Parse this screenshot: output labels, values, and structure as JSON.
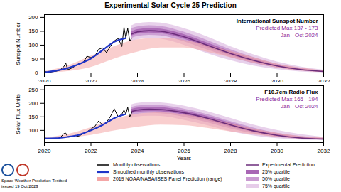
{
  "title": "Experimental Solar Cycle 25 Prediction",
  "footer": [
    "Space Weather Prediction Testbed",
    "issued 19 Oct 2023"
  ],
  "chart_data": [
    {
      "type": "line",
      "ylabel": "Sunspot Number",
      "xlim": [
        2020,
        2032
      ],
      "xticks": [
        2020,
        2022,
        2024,
        2026,
        2028,
        2030,
        2032
      ],
      "ylim": [
        0,
        210
      ],
      "yticks": [
        0,
        50,
        100,
        150,
        200
      ],
      "grid": false,
      "annotations": [
        {
          "text": "International Sunspot Number",
          "color": "#000000"
        },
        {
          "text": "Predicted Max 137 - 173",
          "color": "#8a2b9e"
        },
        {
          "text": "Jan - Oct 2024",
          "color": "#8a2b9e"
        }
      ],
      "series": [
        {
          "name": "Monthly observations",
          "type": "line",
          "color": "#000000",
          "x": [
            2020.0,
            2020.17,
            2020.33,
            2020.5,
            2020.67,
            2020.83,
            2020.92,
            2021.0,
            2021.17,
            2021.33,
            2021.5,
            2021.67,
            2021.83,
            2022.0,
            2022.17,
            2022.33,
            2022.5,
            2022.67,
            2022.83,
            2023.0,
            2023.17,
            2023.33,
            2023.42,
            2023.5,
            2023.58,
            2023.67,
            2023.75
          ],
          "values": [
            6,
            1,
            4,
            6,
            10,
            22,
            35,
            11,
            17,
            25,
            34,
            37,
            60,
            55,
            60,
            85,
            90,
            73,
            95,
            115,
            125,
            95,
            165,
            125,
            160,
            115,
            125
          ]
        },
        {
          "name": "Smoothed monthly observations",
          "type": "line",
          "color": "#1f35c8",
          "x": [
            2020.0,
            2020.5,
            2021.0,
            2021.5,
            2022.0,
            2022.5,
            2023.0,
            2023.5
          ],
          "values": [
            2,
            8,
            17,
            32,
            52,
            82,
            112,
            125
          ]
        },
        {
          "name": "2019 NOAA/NASA/ISES Panel Prediction (range)",
          "type": "area",
          "color": "#f4a6a6",
          "x": [
            2020,
            2021,
            2022,
            2023,
            2024,
            2025,
            2026,
            2027,
            2028,
            2029,
            2030,
            2031,
            2032
          ],
          "low": [
            0,
            5,
            20,
            50,
            75,
            90,
            90,
            75,
            55,
            35,
            18,
            7,
            2
          ],
          "high": [
            5,
            25,
            60,
            95,
            120,
            125,
            118,
            100,
            78,
            55,
            32,
            18,
            8
          ]
        },
        {
          "name": "Experimental Prediction",
          "type": "line",
          "color": "#6b2d7b",
          "x": [
            2023.75,
            2024,
            2024.5,
            2025,
            2026,
            2027,
            2028,
            2029,
            2030,
            2031,
            2032
          ],
          "values": [
            140,
            148,
            152,
            150,
            130,
            100,
            70,
            45,
            25,
            12,
            5
          ]
        },
        {
          "name": "25% quartile",
          "type": "area",
          "color": "#a866b4",
          "x": [
            2023.75,
            2024,
            2024.5,
            2025,
            2026,
            2027,
            2028,
            2029,
            2030,
            2031,
            2032
          ],
          "low": [
            133,
            140,
            144,
            142,
            122,
            92,
            63,
            40,
            22,
            10,
            4
          ],
          "high": [
            148,
            156,
            160,
            158,
            138,
            108,
            77,
            50,
            28,
            14,
            6
          ]
        },
        {
          "name": "50% quartile",
          "type": "area",
          "color": "#c99ad1",
          "x": [
            2023.75,
            2024,
            2024.5,
            2025,
            2026,
            2027,
            2028,
            2029,
            2030,
            2031,
            2032
          ],
          "low": [
            125,
            132,
            136,
            134,
            113,
            83,
            56,
            34,
            18,
            8,
            3
          ],
          "high": [
            160,
            166,
            170,
            168,
            147,
            117,
            84,
            56,
            32,
            17,
            7
          ]
        },
        {
          "name": "75% quartile",
          "type": "area",
          "color": "#e6cce9",
          "x": [
            2023.75,
            2024,
            2024.5,
            2025,
            2026,
            2027,
            2028,
            2029,
            2030,
            2031,
            2032
          ],
          "low": [
            115,
            120,
            125,
            122,
            100,
            70,
            45,
            25,
            12,
            4,
            1
          ],
          "high": [
            170,
            178,
            182,
            180,
            160,
            130,
            95,
            65,
            40,
            22,
            10
          ]
        }
      ]
    },
    {
      "type": "line",
      "xlabel": "Years",
      "ylabel": "Solar Flux Units",
      "xlim": [
        2020,
        2032
      ],
      "xticks": [
        2020,
        2022,
        2024,
        2026,
        2028,
        2030,
        2032
      ],
      "ylim": [
        55,
        265
      ],
      "yticks": [
        100,
        150,
        200,
        250
      ],
      "grid": false,
      "annotations": [
        {
          "text": "F10.7cm Radio Flux",
          "color": "#000000"
        },
        {
          "text": "Predicted Max 165 - 194",
          "color": "#8a2b9e"
        },
        {
          "text": "Jan - Oct 2024",
          "color": "#8a2b9e"
        }
      ],
      "series": [
        {
          "name": "Monthly observations",
          "type": "line",
          "color": "#000000",
          "x": [
            2020.0,
            2020.17,
            2020.33,
            2020.5,
            2020.67,
            2020.83,
            2020.92,
            2021.0,
            2021.17,
            2021.33,
            2021.5,
            2021.67,
            2021.83,
            2022.0,
            2022.17,
            2022.33,
            2022.5,
            2022.67,
            2022.83,
            2023.0,
            2023.17,
            2023.33,
            2023.42,
            2023.5,
            2023.58,
            2023.67,
            2023.75
          ],
          "values": [
            72,
            70,
            70,
            70,
            72,
            88,
            90,
            76,
            78,
            76,
            80,
            88,
            95,
            105,
            115,
            135,
            120,
            130,
            150,
            180,
            150,
            160,
            175,
            160,
            185,
            150,
            165
          ]
        },
        {
          "name": "Smoothed monthly observations",
          "type": "line",
          "color": "#1f35c8",
          "x": [
            2020.0,
            2020.5,
            2021.0,
            2021.5,
            2022.0,
            2022.5,
            2023.0,
            2023.5
          ],
          "values": [
            70,
            71,
            76,
            84,
            100,
            120,
            145,
            160
          ]
        },
        {
          "name": "2019 NOAA/NASA/ISES Panel Prediction (range)",
          "type": "area",
          "color": "#f4a6a6",
          "x": [
            2020,
            2021,
            2022,
            2023,
            2024,
            2025,
            2026,
            2027,
            2028,
            2029,
            2030,
            2031,
            2032
          ],
          "low": [
            67,
            72,
            82,
            98,
            112,
            120,
            118,
            108,
            95,
            84,
            75,
            69,
            66
          ],
          "high": [
            72,
            85,
            110,
            140,
            160,
            165,
            158,
            145,
            125,
            105,
            90,
            78,
            72
          ]
        },
        {
          "name": "Experimental Prediction",
          "type": "line",
          "color": "#6b2d7b",
          "x": [
            2023.75,
            2024,
            2024.5,
            2025,
            2026,
            2027,
            2028,
            2029,
            2030,
            2031,
            2032
          ],
          "values": [
            170,
            175,
            178,
            177,
            165,
            145,
            120,
            98,
            82,
            72,
            68
          ]
        },
        {
          "name": "25% quartile",
          "type": "area",
          "color": "#a866b4",
          "x": [
            2023.75,
            2024,
            2024.5,
            2025,
            2026,
            2027,
            2028,
            2029,
            2030,
            2031,
            2032
          ],
          "low": [
            162,
            167,
            170,
            169,
            157,
            137,
            113,
            93,
            78,
            70,
            66
          ],
          "high": [
            178,
            183,
            186,
            185,
            172,
            152,
            127,
            103,
            86,
            75,
            70
          ]
        },
        {
          "name": "50% quartile",
          "type": "area",
          "color": "#c99ad1",
          "x": [
            2023.75,
            2024,
            2024.5,
            2025,
            2026,
            2027,
            2028,
            2029,
            2030,
            2031,
            2032
          ],
          "low": [
            155,
            160,
            163,
            162,
            149,
            129,
            106,
            88,
            75,
            68,
            65
          ],
          "high": [
            185,
            190,
            193,
            192,
            179,
            159,
            133,
            109,
            90,
            78,
            71
          ]
        },
        {
          "name": "75% quartile",
          "type": "area",
          "color": "#e6cce9",
          "x": [
            2023.75,
            2024,
            2024.5,
            2025,
            2026,
            2027,
            2028,
            2029,
            2030,
            2031,
            2032
          ],
          "low": [
            145,
            150,
            153,
            152,
            138,
            118,
            96,
            80,
            70,
            65,
            63
          ],
          "high": [
            195,
            200,
            203,
            202,
            190,
            170,
            145,
            120,
            100,
            85,
            75
          ]
        }
      ]
    }
  ]
}
